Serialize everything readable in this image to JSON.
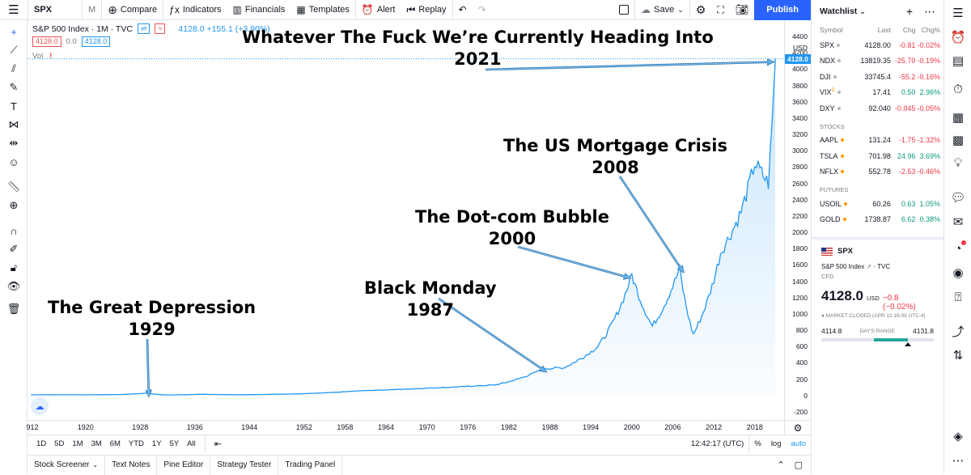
{
  "topbar": {
    "symbol": "SPX",
    "interval": "M",
    "compare": "Compare",
    "indicators": "Indicators",
    "financials": "Financials",
    "templates": "Templates",
    "alert": "Alert",
    "replay": "Replay",
    "save": "Save",
    "publish": "Publish"
  },
  "legend": {
    "title": "S&P 500 Index · 1M · TVC",
    "value": "4128.0 +155.1 (+3.90%)",
    "bid": "4128.0",
    "spread": "0.0",
    "ask": "4128.0",
    "vol": "Vol",
    "vol_warn": "!"
  },
  "chart_data": {
    "type": "line",
    "title": "S&P 500 Index · 1M · TVC",
    "x": [
      1912,
      1915,
      1920,
      1925,
      1929,
      1932,
      1937,
      1942,
      1950,
      1960,
      1970,
      1980,
      1987,
      1990,
      1995,
      2000,
      2003,
      2007,
      2009,
      2013,
      2016,
      2018,
      2020,
      2021
    ],
    "y": [
      8,
      9,
      8,
      12,
      30,
      6,
      15,
      9,
      18,
      58,
      90,
      130,
      330,
      340,
      600,
      1480,
      850,
      1560,
      750,
      1750,
      2250,
      2850,
      2600,
      4128
    ],
    "ylim": [
      -300,
      4600
    ],
    "y_ticks": [
      -200,
      0,
      200,
      400,
      600,
      800,
      1000,
      1200,
      1400,
      1600,
      1800,
      2000,
      2200,
      2400,
      2600,
      2800,
      3000,
      3200,
      3400,
      3600,
      3800,
      4000,
      4200,
      4400
    ],
    "y_unit": "USD",
    "x_ticks": [
      "912",
      "1920",
      "1928",
      "1936",
      "1944",
      "1952",
      "1958",
      "1964",
      "1970",
      "1976",
      "1982",
      "1988",
      "1994",
      "2000",
      "2006",
      "2012",
      "2018"
    ],
    "last_value": "4128.0",
    "grid": false,
    "annotations": [
      {
        "line1": "Whatever The Fuck We’re Currently Heading Into",
        "line2": "2021",
        "year": 2021,
        "value": 4128
      },
      {
        "line1": "The US Mortgage Crisis",
        "line2": "2008",
        "year": 2007.8,
        "value": 1550
      },
      {
        "line1": "The Dot-com Bubble",
        "line2": "2000",
        "year": 2000,
        "value": 1480
      },
      {
        "line1": "Black Monday",
        "line2": "1987",
        "year": 1987.7,
        "value": 330
      },
      {
        "line1": "The Great Depression",
        "line2": "1929",
        "year": 1929.5,
        "value": 30
      }
    ]
  },
  "rangebar": {
    "ranges": [
      "1D",
      "5D",
      "1M",
      "3M",
      "6M",
      "YTD",
      "1Y",
      "5Y",
      "All"
    ],
    "time": "12:42:17 (UTC)",
    "percent": "%",
    "log": "log",
    "auto": "auto"
  },
  "bottombar": {
    "tabs": [
      "Stock Screener",
      "Text Notes",
      "Pine Editor",
      "Strategy Tester",
      "Trading Panel"
    ]
  },
  "watchlist": {
    "title": "Watchlist",
    "cols": {
      "symbol": "Symbol",
      "last": "Last",
      "chg": "Chg",
      "pct": "Chg%"
    },
    "indices": [
      {
        "sym": "SPX",
        "last": "4128.00",
        "chg": "-0.81",
        "pct": "-0.02%",
        "dir": "neg"
      },
      {
        "sym": "NDX",
        "last": "13819.35",
        "chg": "-25.70",
        "pct": "-0.19%",
        "dir": "neg"
      },
      {
        "sym": "DJI",
        "last": "33745.4",
        "chg": "-55.2",
        "pct": "-0.16%",
        "dir": "neg"
      },
      {
        "sym": "VIX",
        "sup": "D",
        "last": "17.41",
        "chg": "0.50",
        "pct": "2.96%",
        "dir": "pos"
      },
      {
        "sym": "DXY",
        "last": "92.040",
        "chg": "-0.045",
        "pct": "-0.05%",
        "dir": "neg"
      }
    ],
    "stocks_label": "STOCKS",
    "stocks": [
      {
        "sym": "AAPL",
        "last": "131.24",
        "chg": "-1.75",
        "pct": "-1.32%",
        "dir": "neg"
      },
      {
        "sym": "TSLA",
        "last": "701.98",
        "chg": "24.96",
        "pct": "3.69%",
        "dir": "pos"
      },
      {
        "sym": "NFLX",
        "last": "552.78",
        "chg": "-2.53",
        "pct": "-0.46%",
        "dir": "neg"
      }
    ],
    "futures_label": "FUTURES",
    "futures": [
      {
        "sym": "USOIL",
        "last": "60.26",
        "chg": "0.63",
        "pct": "1.05%",
        "dir": "pos"
      },
      {
        "sym": "GOLD",
        "last": "1738.87",
        "chg": "6.62",
        "pct": "0.38%",
        "dir": "pos"
      }
    ]
  },
  "detail": {
    "symbol": "SPX",
    "name": "S&P 500 Index",
    "exchange": "TVC",
    "type": "CFD",
    "price": "4128.0",
    "currency": "USD",
    "change": "−0.8 (−0.02%)",
    "status": "MARKET CLOSED  (APR 12 16:09 UTC-4)",
    "low": "4114.8",
    "range_label": "DAY'S RANGE",
    "high": "4131.8",
    "range_position": 0.77
  },
  "colors": {
    "line": "#2196f3",
    "accent": "#2962ff",
    "negative": "#f23645",
    "positive": "#089981"
  }
}
